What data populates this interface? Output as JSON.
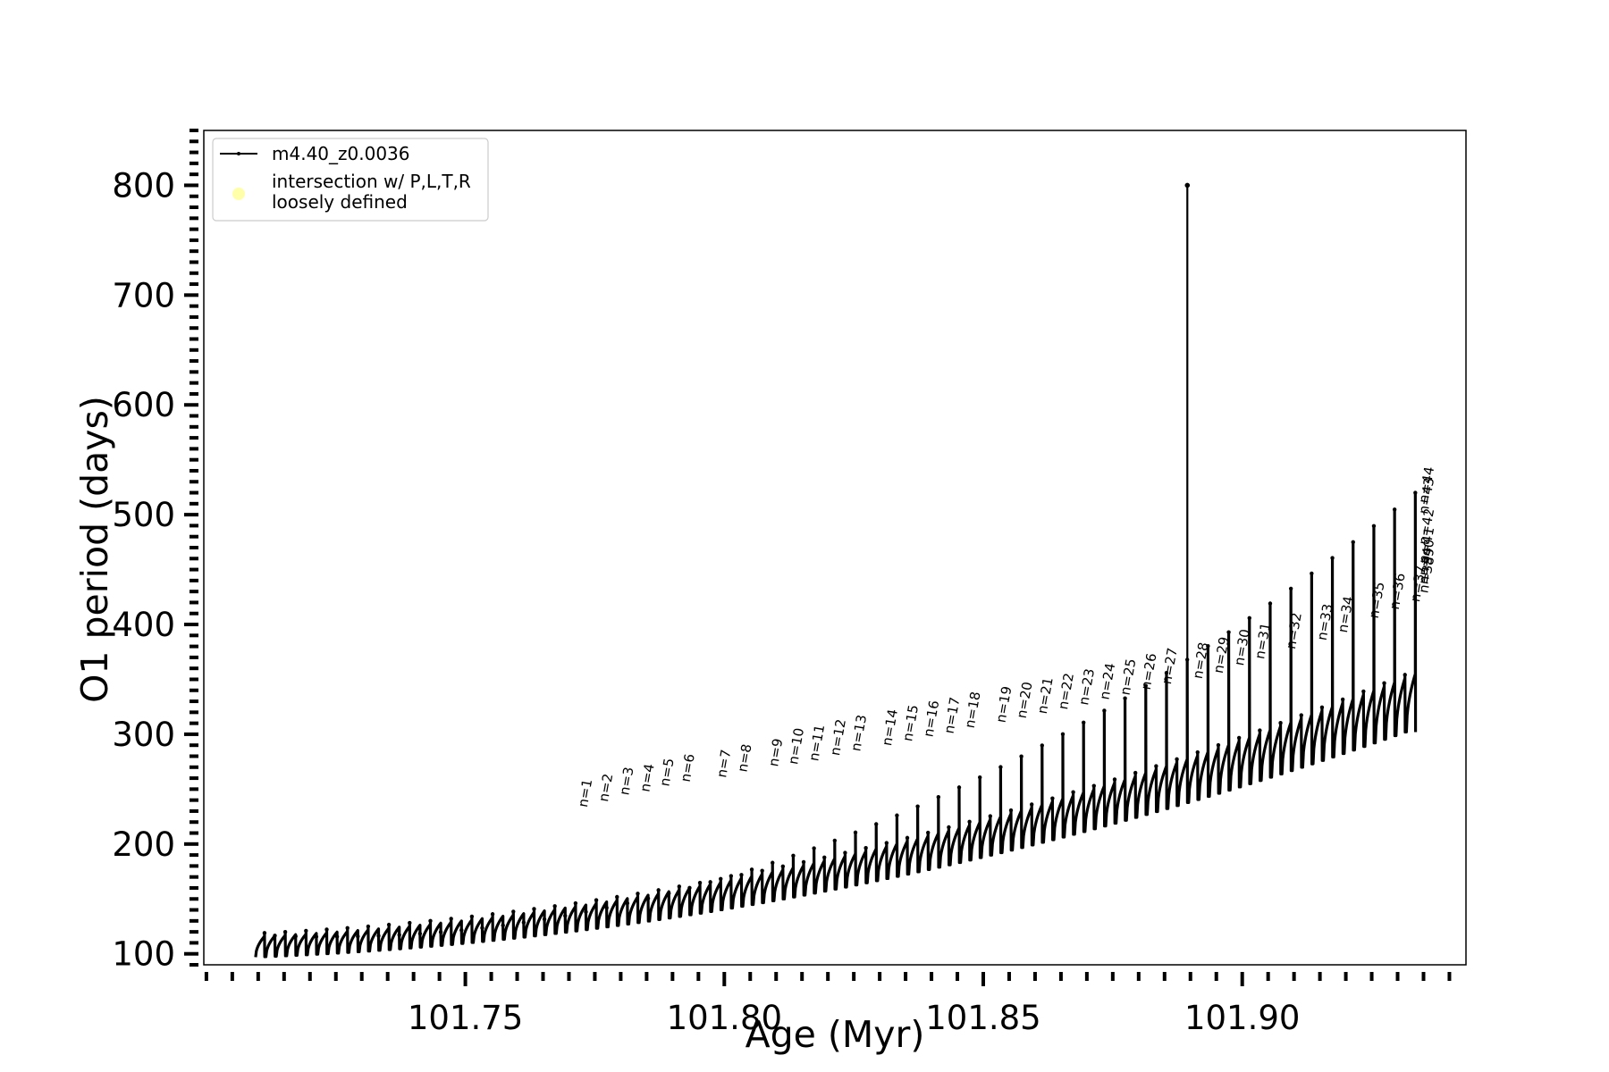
{
  "chart_data": {
    "type": "line",
    "xlabel": "Age (Myr)",
    "ylabel": "O1 period (days)",
    "xlim": [
      101.6995,
      101.9432
    ],
    "ylim": [
      90,
      850
    ],
    "xticks": [
      101.75,
      101.8,
      101.85,
      101.9
    ],
    "xtick_labels": [
      "101.75",
      "101.80",
      "101.85",
      "101.90"
    ],
    "yticks": [
      100,
      200,
      300,
      400,
      500,
      600,
      700,
      800
    ],
    "ytick_labels": [
      "100",
      "200",
      "300",
      "400",
      "500",
      "600",
      "700",
      "800"
    ],
    "x_minor_tick_step": 0.005,
    "y_minor_tick_step": 10,
    "legend": {
      "position": "upper-left",
      "entries": [
        {
          "label": "m4.40_z0.0036",
          "color": "#000000",
          "marker": "line-dot"
        },
        {
          "label": "intersection w/ P,L,T,R\nloosely defined",
          "color": "#ffffaa",
          "marker": "circle"
        }
      ]
    },
    "series": [
      {
        "name": "m4.40_z0.0036",
        "color": "#000000",
        "pulse_cycles": {
          "count": 112,
          "x_start": 101.7095,
          "x_end": 101.9337,
          "base_start": 97,
          "base_end": 302,
          "base_mid": 158,
          "peak_start": 116,
          "peak_end": 355,
          "peak_mid": 188,
          "spike_start": 117,
          "spike_end": 520,
          "spike_mid": 205
        },
        "outlier": {
          "x": 101.8894,
          "y": 800
        }
      }
    ],
    "annotations": [
      {
        "text": "n=1",
        "x": 101.7735,
        "y": 233
      },
      {
        "text": "n=2",
        "x": 101.7775,
        "y": 238
      },
      {
        "text": "n=3",
        "x": 101.7815,
        "y": 244
      },
      {
        "text": "n=4",
        "x": 101.7855,
        "y": 247
      },
      {
        "text": "n=5",
        "x": 101.7893,
        "y": 252
      },
      {
        "text": "n=6",
        "x": 101.7933,
        "y": 256
      },
      {
        "text": "n=7",
        "x": 101.8003,
        "y": 260
      },
      {
        "text": "n=8",
        "x": 101.8043,
        "y": 265
      },
      {
        "text": "n=9",
        "x": 101.8103,
        "y": 270
      },
      {
        "text": "n=10",
        "x": 101.8141,
        "y": 272
      },
      {
        "text": "n=11",
        "x": 101.8181,
        "y": 275
      },
      {
        "text": "n=12",
        "x": 101.8222,
        "y": 280
      },
      {
        "text": "n=13",
        "x": 101.8262,
        "y": 284
      },
      {
        "text": "n=14",
        "x": 101.8322,
        "y": 289
      },
      {
        "text": "n=15",
        "x": 101.8362,
        "y": 293
      },
      {
        "text": "n=16",
        "x": 101.8402,
        "y": 297
      },
      {
        "text": "n=17",
        "x": 101.8442,
        "y": 300
      },
      {
        "text": "n=18",
        "x": 101.8482,
        "y": 305
      },
      {
        "text": "n=19",
        "x": 101.8542,
        "y": 310
      },
      {
        "text": "n=20",
        "x": 101.8582,
        "y": 314
      },
      {
        "text": "n=21",
        "x": 101.8622,
        "y": 318
      },
      {
        "text": "n=22",
        "x": 101.8662,
        "y": 322
      },
      {
        "text": "n=23",
        "x": 101.8702,
        "y": 326
      },
      {
        "text": "n=24",
        "x": 101.8742,
        "y": 331
      },
      {
        "text": "n=25",
        "x": 101.8782,
        "y": 335
      },
      {
        "text": "n=26",
        "x": 101.8822,
        "y": 340
      },
      {
        "text": "n=27",
        "x": 101.8862,
        "y": 345
      },
      {
        "text": "n=28",
        "x": 101.8922,
        "y": 350
      },
      {
        "text": "n=29",
        "x": 101.8962,
        "y": 355
      },
      {
        "text": "n=30",
        "x": 101.9002,
        "y": 362
      },
      {
        "text": "n=31",
        "x": 101.9042,
        "y": 368
      },
      {
        "text": "n=32",
        "x": 101.9102,
        "y": 377
      },
      {
        "text": "n=33",
        "x": 101.9162,
        "y": 385
      },
      {
        "text": "n=34",
        "x": 101.9202,
        "y": 392
      },
      {
        "text": "n=35",
        "x": 101.9262,
        "y": 405
      },
      {
        "text": "n=36",
        "x": 101.9302,
        "y": 413
      },
      {
        "text": "n=37",
        "x": 101.9342,
        "y": 420
      },
      {
        "text": "n=38",
        "x": 101.9382,
        "y": 428
      },
      {
        "text": "n=39",
        "x": 101.9422,
        "y": 436
      },
      {
        "text": "n=40",
        "x": 101.9462,
        "y": 444
      },
      {
        "text": "n=41",
        "x": 101.9502,
        "y": 455
      },
      {
        "text": "n=42",
        "x": 101.9562,
        "y": 472
      },
      {
        "text": "n=43",
        "x": 101.9638,
        "y": 500
      },
      {
        "text": "n=44",
        "x": 101.9663,
        "y": 510
      }
    ]
  }
}
